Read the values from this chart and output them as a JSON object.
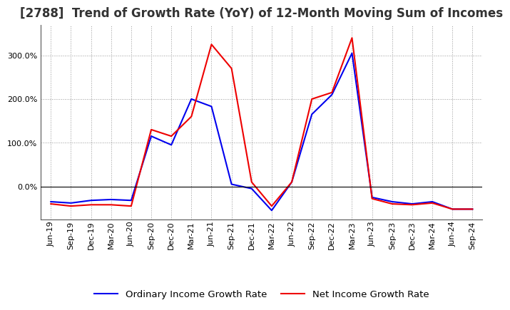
{
  "title": "[2788]  Trend of Growth Rate (YoY) of 12-Month Moving Sum of Incomes",
  "x_labels": [
    "Jun-19",
    "Sep-19",
    "Dec-19",
    "Mar-20",
    "Jun-20",
    "Sep-20",
    "Dec-20",
    "Mar-21",
    "Jun-21",
    "Sep-21",
    "Dec-21",
    "Mar-22",
    "Jun-22",
    "Sep-22",
    "Dec-22",
    "Mar-23",
    "Jun-23",
    "Sep-23",
    "Dec-23",
    "Mar-24",
    "Jun-24",
    "Sep-24"
  ],
  "ordinary_income": [
    -35,
    -38,
    -32,
    -30,
    -32,
    115,
    95,
    200,
    183,
    5,
    -5,
    -55,
    10,
    165,
    210,
    305,
    -25,
    -35,
    -40,
    -35,
    -52,
    -52
  ],
  "net_income": [
    -40,
    -45,
    -42,
    -42,
    -45,
    130,
    115,
    160,
    325,
    270,
    10,
    -45,
    10,
    200,
    215,
    340,
    -28,
    -40,
    -42,
    -38,
    -52,
    -52
  ],
  "ordinary_color": "#0000ee",
  "net_color": "#ee0000",
  "background_color": "#ffffff",
  "grid_color": "#999999",
  "yticks": [
    0,
    100,
    200,
    300
  ],
  "ylim": [
    -75,
    370
  ],
  "legend_ordinary": "Ordinary Income Growth Rate",
  "legend_net": "Net Income Growth Rate",
  "title_fontsize": 12,
  "tick_fontsize": 8,
  "legend_fontsize": 9.5
}
